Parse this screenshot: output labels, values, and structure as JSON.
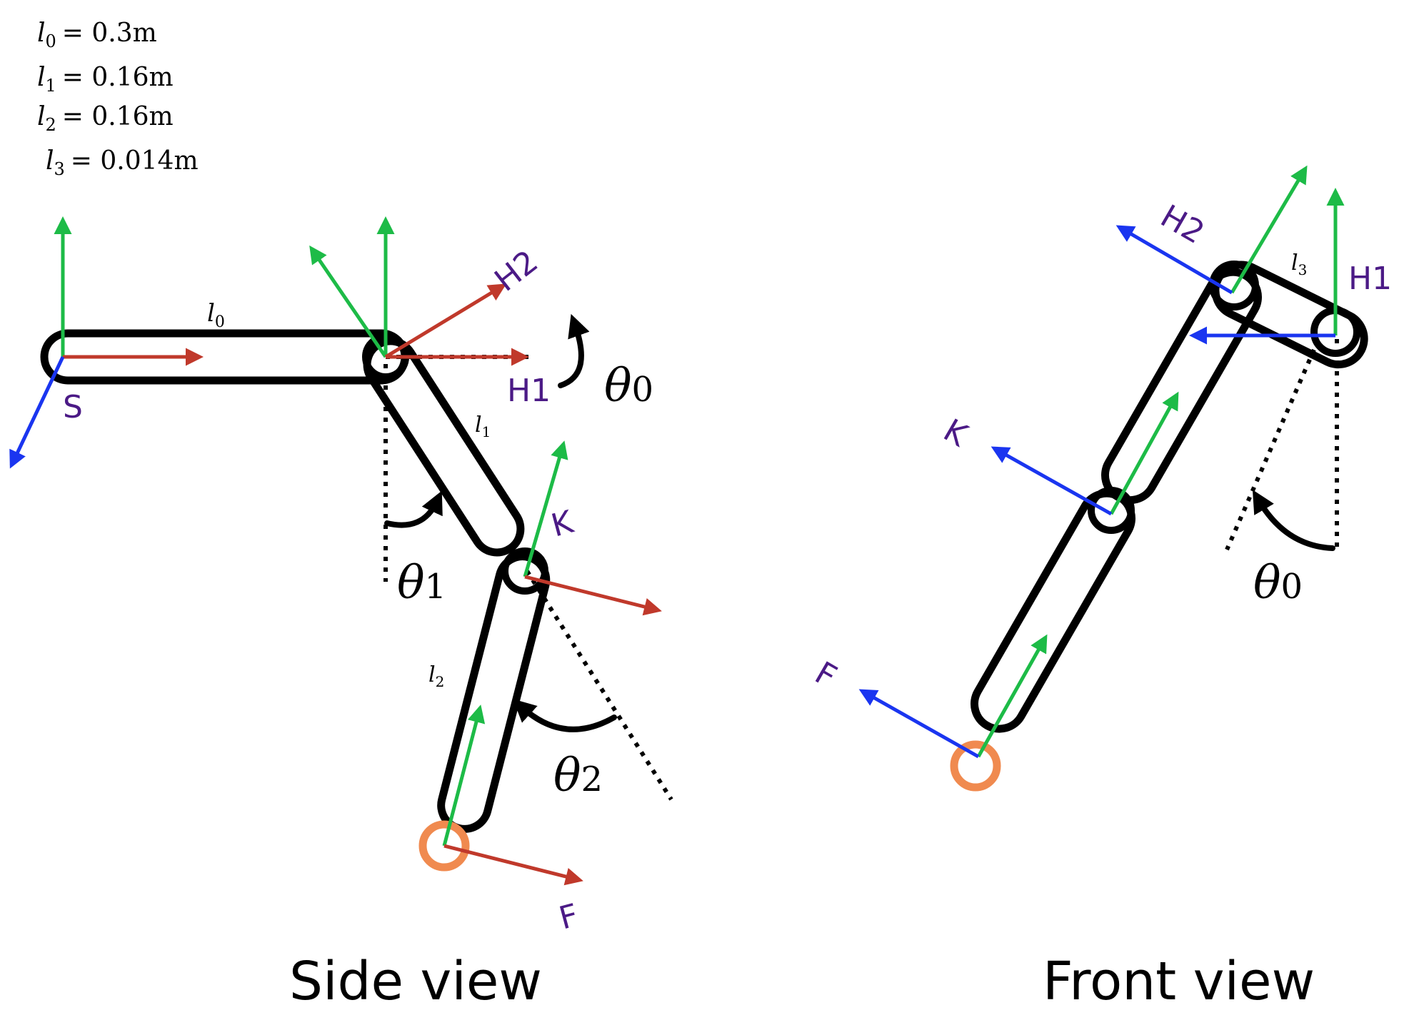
{
  "params": [
    {
      "name": "l",
      "sub": "0",
      "value": "= 0.3m"
    },
    {
      "name": "l",
      "sub": "1",
      "value": "= 0.16m"
    },
    {
      "name": "l",
      "sub": "2",
      "value": "= 0.16m"
    },
    {
      "name": "l",
      "sub": "3",
      "value": "= 0.014m"
    }
  ],
  "links": {
    "l0": {
      "name": "l",
      "sub": "0"
    },
    "l1": {
      "name": "l",
      "sub": "1"
    },
    "l2": {
      "name": "l",
      "sub": "2"
    },
    "l3": {
      "name": "l",
      "sub": "3"
    }
  },
  "frames": {
    "s": "S",
    "h1": "H1",
    "h2": "H2",
    "k": "K",
    "f": "F"
  },
  "angles": {
    "theta": "θ",
    "t0": "0",
    "t1": "1",
    "t2": "2"
  },
  "views": {
    "side": "Side view",
    "front": "Front view"
  },
  "colors": {
    "x_axis": "#c0392b",
    "y_axis": "#1dbb47",
    "z_axis": "#1a35f0",
    "frame_label": "#4b1a86",
    "foot": "#f08a4f"
  }
}
